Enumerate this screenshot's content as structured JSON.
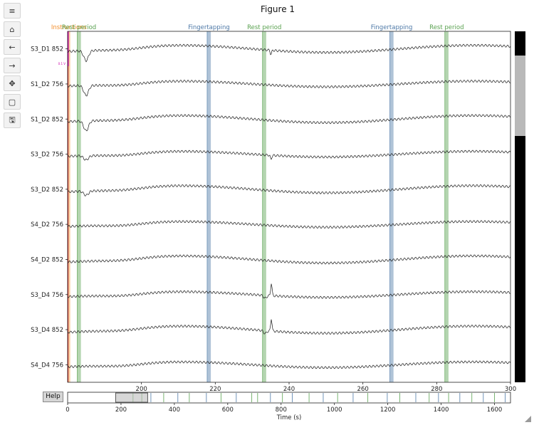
{
  "window": {
    "title": "Figure 1"
  },
  "toolbar": {
    "buttons": [
      {
        "name": "menu-icon",
        "glyph": "≡"
      },
      {
        "name": "home-icon",
        "glyph": "⌂"
      },
      {
        "name": "back-arrow-icon",
        "glyph": "←"
      },
      {
        "name": "forward-arrow-icon",
        "glyph": "→"
      },
      {
        "name": "pan-icon",
        "glyph": "✥"
      },
      {
        "name": "zoom-rect-icon",
        "glyph": "▢"
      },
      {
        "name": "save-icon",
        "glyph": "🖫"
      }
    ]
  },
  "help_button": {
    "label": "Help"
  },
  "scale_label": "0.1 V",
  "chart_data": {
    "type": "line",
    "x_range": [
      180,
      300
    ],
    "xticks": [
      200,
      220,
      240,
      260,
      280,
      300
    ],
    "channels": [
      "S3_D1 852",
      "S1_D2 756",
      "S1_D2 852",
      "S3_D2 756",
      "S3_D2 852",
      "S4_D2 756",
      "S4_D2 852",
      "S3_D4 756",
      "S3_D4 852",
      "S4_D4 756"
    ],
    "annotations": [
      {
        "label": "Instructions",
        "color": "#f28e2b",
        "start": 180.0,
        "end": 180.7,
        "labeled": true
      },
      {
        "label": "Rest period",
        "color": "#59a14f",
        "start": 182.6,
        "end": 183.6,
        "labeled": true
      },
      {
        "label": "Fingertapping",
        "color": "#4e79a7",
        "start": 217.8,
        "end": 218.8,
        "labeled": true
      },
      {
        "label": "Rest period",
        "color": "#59a14f",
        "start": 232.8,
        "end": 233.8,
        "labeled": true
      },
      {
        "label": "Fingertapping",
        "color": "#4e79a7",
        "start": 267.3,
        "end": 268.3,
        "labeled": true
      },
      {
        "label": "Rest period",
        "color": "#59a14f",
        "start": 282.2,
        "end": 283.2,
        "labeled": true
      }
    ],
    "overview": {
      "x_range": [
        0,
        1660
      ],
      "xticks": [
        0,
        200,
        400,
        600,
        800,
        1000,
        1200,
        1400,
        1600
      ],
      "xlabel": "Time (s)",
      "window": [
        180,
        300
      ],
      "event_times": [
        {
          "t": 245,
          "color": "#59a14f"
        },
        {
          "t": 278,
          "color": "#59a14f"
        },
        {
          "t": 312,
          "color": "#4e79a7"
        },
        {
          "t": 360,
          "color": "#59a14f"
        },
        {
          "t": 413,
          "color": "#4e79a7"
        },
        {
          "t": 456,
          "color": "#59a14f"
        },
        {
          "t": 520,
          "color": "#4e79a7"
        },
        {
          "t": 575,
          "color": "#59a14f"
        },
        {
          "t": 632,
          "color": "#4e79a7"
        },
        {
          "t": 690,
          "color": "#59a14f"
        },
        {
          "t": 712,
          "color": "#59a14f"
        },
        {
          "t": 760,
          "color": "#4e79a7"
        },
        {
          "t": 805,
          "color": "#59a14f"
        },
        {
          "t": 842,
          "color": "#4e79a7"
        },
        {
          "t": 905,
          "color": "#59a14f"
        },
        {
          "t": 958,
          "color": "#4e79a7"
        },
        {
          "t": 1012,
          "color": "#59a14f"
        },
        {
          "t": 1070,
          "color": "#4e79a7"
        },
        {
          "t": 1125,
          "color": "#59a14f"
        },
        {
          "t": 1198,
          "color": "#4e79a7"
        },
        {
          "t": 1245,
          "color": "#59a14f"
        },
        {
          "t": 1305,
          "color": "#4e79a7"
        },
        {
          "t": 1355,
          "color": "#59a14f"
        },
        {
          "t": 1390,
          "color": "#4e79a7"
        },
        {
          "t": 1428,
          "color": "#59a14f"
        },
        {
          "t": 1470,
          "color": "#4e79a7"
        },
        {
          "t": 1515,
          "color": "#59a14f"
        },
        {
          "t": 1558,
          "color": "#4e79a7"
        },
        {
          "t": 1600,
          "color": "#59a14f"
        },
        {
          "t": 1640,
          "color": "#4e79a7"
        }
      ]
    }
  }
}
